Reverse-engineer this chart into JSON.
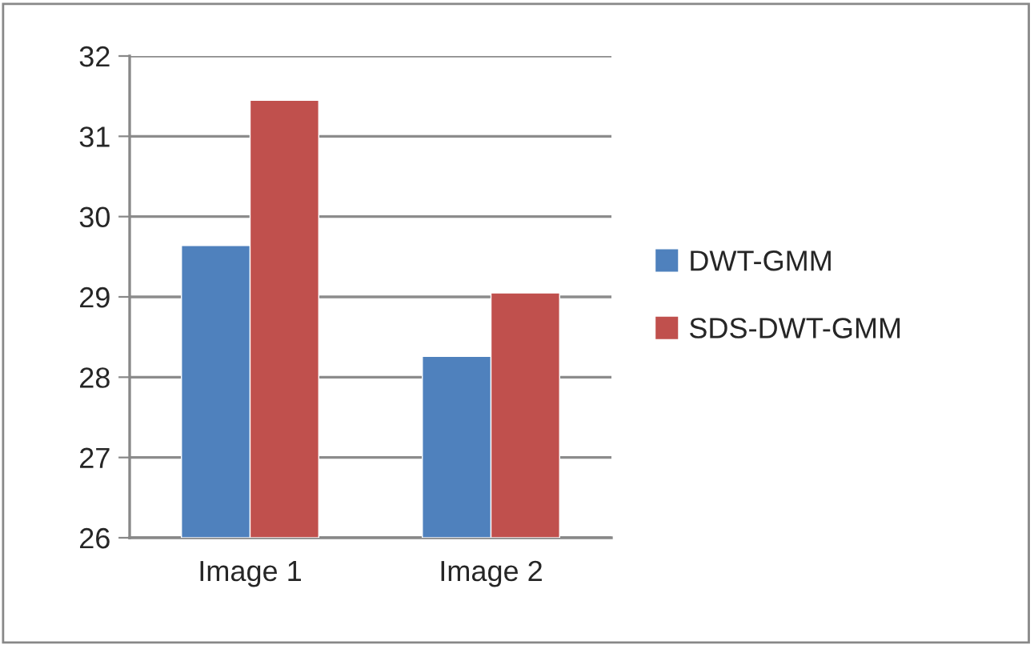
{
  "chart_data": {
    "type": "bar",
    "categories": [
      "Image 1",
      "Image 2"
    ],
    "series": [
      {
        "name": "DWT-GMM",
        "color": "#4f81bd",
        "values": [
          29.64,
          28.26
        ]
      },
      {
        "name": "SDS-DWT-GMM",
        "color": "#c0504d",
        "values": [
          31.45,
          29.05
        ]
      }
    ],
    "ylim": [
      26,
      32
    ],
    "yticks": [
      26,
      27,
      28,
      29,
      30,
      31,
      32
    ],
    "grid": "y",
    "legend": "right"
  }
}
